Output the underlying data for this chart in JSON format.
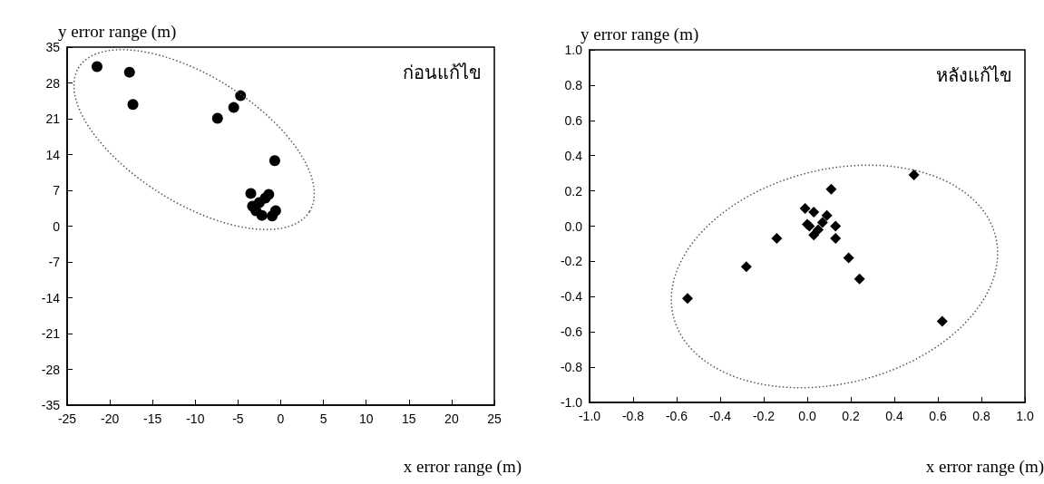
{
  "chart_data": [
    {
      "type": "scatter",
      "ylabel": "y error range (m)",
      "xlabel": "x error range (m)",
      "annotations": [
        "ก่อนแก้ไข"
      ],
      "marker": "circle",
      "grid": false,
      "xlim": [
        -25,
        25
      ],
      "xticks": [
        -25,
        -20,
        -15,
        -10,
        -5,
        0,
        5,
        10,
        15,
        20,
        25
      ],
      "ylim": [
        -35,
        35
      ],
      "yticks": [
        -35,
        -28,
        -21,
        -14,
        -7,
        0,
        7,
        14,
        21,
        28,
        35
      ],
      "series": [
        {
          "color": "#000000",
          "x": [
            -21.5,
            -17.7,
            -17.3,
            -4.7,
            -5.5,
            -7.4,
            -0.7,
            -3.5,
            -1.4,
            -3.3,
            -0.6,
            -1.0,
            -2.5,
            -2.2,
            -2.9,
            -1.8
          ],
          "values": [
            31.2,
            30.1,
            23.8,
            25.5,
            23.2,
            21.1,
            12.8,
            6.4,
            6.2,
            3.9,
            3.0,
            2.0,
            4.6,
            2.1,
            3.0,
            5.5
          ]
        }
      ]
    },
    {
      "type": "scatter",
      "ylabel": "y error range (m)",
      "xlabel": "x error range (m)",
      "annotations": [
        "หลังแก้ไข"
      ],
      "marker": "diamond",
      "grid": false,
      "xlim": [
        -1.0,
        1.0
      ],
      "xticks": [
        {
          "value": -1,
          "label": "-1.0"
        },
        -0.8,
        -0.6,
        -0.4,
        -0.2,
        {
          "value": 0,
          "label": "0.0"
        },
        0.2,
        0.4,
        0.6,
        0.8,
        {
          "value": 1,
          "label": "1.0"
        }
      ],
      "ylim": [
        -1.0,
        1.0
      ],
      "yticks": [
        {
          "value": -1,
          "label": "-1.0"
        },
        -0.8,
        -0.6,
        -0.4,
        -0.2,
        {
          "value": 0,
          "label": "0.0"
        },
        0.2,
        0.4,
        0.6,
        0.8,
        {
          "value": 1,
          "label": "1.0"
        }
      ],
      "series": [
        {
          "color": "#000000",
          "x": [
            -0.55,
            -0.28,
            -0.14,
            0.11,
            0.49,
            0.62,
            0.13,
            0.13,
            0.19,
            0.24,
            -0.01,
            0.03,
            0.09,
            0.01,
            0.05,
            0.03,
            0.07,
            0.0
          ],
          "values": [
            -0.41,
            -0.23,
            -0.07,
            0.21,
            0.29,
            -0.54,
            0.0,
            -0.07,
            -0.18,
            -0.3,
            0.1,
            0.08,
            0.06,
            0.0,
            -0.02,
            -0.05,
            0.02,
            0.01
          ]
        }
      ]
    }
  ]
}
